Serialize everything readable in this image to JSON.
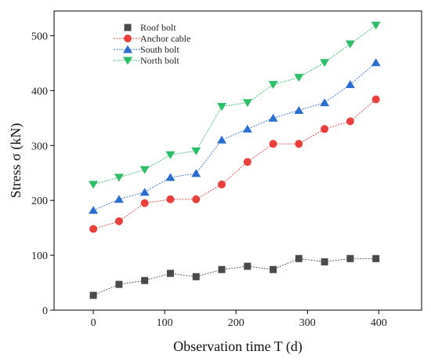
{
  "chart_data": {
    "type": "line",
    "xlabel": "Observation time T (d)",
    "ylabel": "Stress σ (kN)",
    "xlim": [
      -55,
      460
    ],
    "ylim": [
      0,
      545
    ],
    "xticks": [
      "0",
      "100",
      "200",
      "300",
      "400"
    ],
    "yticks": [
      "0",
      "100",
      "200",
      "300",
      "400",
      "500"
    ],
    "grid": false,
    "legend_position": "top-left",
    "x": [
      0,
      36,
      72,
      108,
      144,
      180,
      216,
      252,
      288,
      324,
      360,
      396
    ],
    "series": [
      {
        "name": "Roof bolt",
        "marker": "square",
        "color": "#4a4a4a",
        "values": [
          27,
          47,
          54,
          67,
          61,
          74,
          80,
          74,
          94,
          88,
          94,
          94
        ]
      },
      {
        "name": "Anchor cable",
        "marker": "circle",
        "color": "#e8413b",
        "values": [
          148,
          162,
          195,
          202,
          202,
          229,
          270,
          303,
          303,
          330,
          344,
          384
        ]
      },
      {
        "name": "South bolt",
        "marker": "triangle-up",
        "color": "#2a6fd0",
        "values": [
          182,
          202,
          215,
          242,
          249,
          310,
          330,
          350,
          364,
          378,
          411,
          451
        ]
      },
      {
        "name": "North bolt",
        "marker": "triangle-down",
        "color": "#2cbf68",
        "values": [
          229,
          242,
          256,
          283,
          290,
          371,
          378,
          411,
          424,
          451,
          485,
          519
        ]
      }
    ]
  }
}
